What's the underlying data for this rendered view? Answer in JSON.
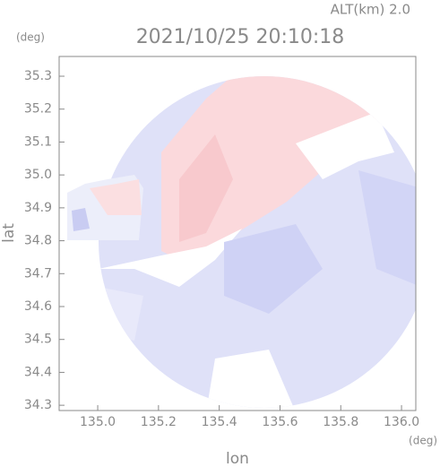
{
  "chart_data": {
    "type": "map",
    "title": "2021/10/25 20:10:18",
    "subtitle": "ALT(km) 2.0",
    "y_unit": "(deg)",
    "x_unit": "(deg)",
    "x_label": "lon",
    "y_label": "lat",
    "xlim": [
      134.873,
      136.047
    ],
    "ylim": [
      34.284,
      35.36
    ],
    "xticks": [
      {
        "value": 135,
        "label": "135.0"
      },
      {
        "value": 135.2,
        "label": "135.2"
      },
      {
        "value": 135.4,
        "label": "135.4"
      },
      {
        "value": 135.6,
        "label": "135.6"
      },
      {
        "value": 135.8,
        "label": "135.8"
      },
      {
        "value": 136,
        "label": "136.0"
      }
    ],
    "yticks": [
      34.3,
      34.4,
      34.5,
      34.6,
      34.7,
      34.8,
      34.9,
      {
        "value": 35,
        "label": "35.0"
      },
      35.1,
      35.2,
      35.3
    ]
  }
}
